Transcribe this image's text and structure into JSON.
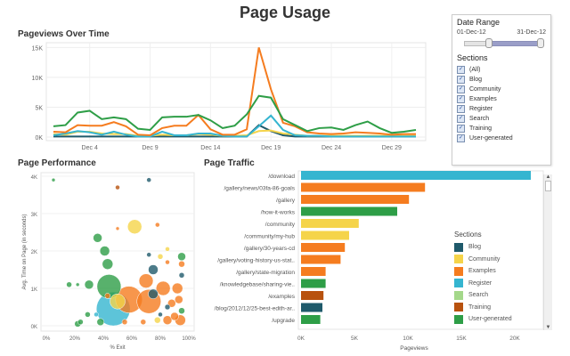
{
  "title": "Page Usage",
  "colors": {
    "Blog": "#1f5a6b",
    "Community": "#f5d44a",
    "Examples": "#f57c1f",
    "Register": "#35b5d0",
    "Search": "#a4d88a",
    "Training": "#b8520f",
    "User-generated": "#2e9e47"
  },
  "filters": {
    "date_range_label": "Date Range",
    "start": "01-Dec-12",
    "end": "31-Dec-12",
    "sections_label": "Sections",
    "sections": [
      "(All)",
      "Blog",
      "Community",
      "Examples",
      "Register",
      "Search",
      "Training",
      "User-generated"
    ]
  },
  "chart_data": [
    {
      "type": "line",
      "title": "Pageviews Over Time",
      "x": [
        "Dec 1",
        "Dec 2",
        "Dec 3",
        "Dec 4",
        "Dec 5",
        "Dec 6",
        "Dec 7",
        "Dec 8",
        "Dec 9",
        "Dec 10",
        "Dec 11",
        "Dec 12",
        "Dec 13",
        "Dec 14",
        "Dec 15",
        "Dec 16",
        "Dec 17",
        "Dec 18",
        "Dec 19",
        "Dec 20",
        "Dec 21",
        "Dec 22",
        "Dec 23",
        "Dec 24",
        "Dec 25",
        "Dec 26",
        "Dec 27",
        "Dec 28",
        "Dec 29",
        "Dec 30",
        "Dec 31"
      ],
      "xticks": [
        "Dec 4",
        "Dec 9",
        "Dec 14",
        "Dec 19",
        "Dec 24",
        "Dec 29"
      ],
      "yticks": [
        "0K",
        "5K",
        "10K",
        "15K"
      ],
      "ylim": [
        0,
        15500
      ],
      "series": [
        {
          "name": "User-generated",
          "values": [
            1800,
            2000,
            4100,
            4400,
            3000,
            3300,
            3000,
            1400,
            1200,
            3300,
            3400,
            3400,
            3700,
            2800,
            1500,
            1900,
            3800,
            6900,
            6600,
            3000,
            2000,
            1000,
            1500,
            1600,
            1200,
            2000,
            2600,
            1500,
            700,
            900,
            1200
          ]
        },
        {
          "name": "Examples",
          "values": [
            900,
            800,
            2000,
            1900,
            1900,
            2500,
            1800,
            400,
            300,
            1500,
            1900,
            1900,
            3700,
            1300,
            400,
            400,
            1300,
            15000,
            8000,
            2400,
            1800,
            800,
            600,
            500,
            600,
            800,
            700,
            600,
            400,
            500,
            500
          ]
        },
        {
          "name": "Register",
          "values": [
            300,
            600,
            1000,
            800,
            400,
            900,
            400,
            100,
            100,
            900,
            300,
            300,
            600,
            600,
            200,
            100,
            100,
            1800,
            3600,
            1200,
            300,
            200,
            200,
            100,
            100,
            100,
            100,
            100,
            100,
            100,
            100
          ]
        },
        {
          "name": "Community",
          "values": [
            500,
            400,
            900,
            900,
            600,
            500,
            500,
            200,
            200,
            400,
            300,
            300,
            500,
            400,
            200,
            200,
            300,
            1000,
            1100,
            600,
            400,
            200,
            200,
            200,
            200,
            200,
            200,
            200,
            200,
            200,
            200
          ]
        },
        {
          "name": "Blog",
          "values": [
            100,
            100,
            100,
            100,
            100,
            100,
            100,
            100,
            100,
            100,
            100,
            100,
            100,
            100,
            100,
            100,
            100,
            2000,
            1000,
            300,
            100,
            100,
            100,
            100,
            100,
            100,
            100,
            100,
            100,
            100,
            100
          ]
        }
      ]
    },
    {
      "type": "scatter",
      "title": "Page Performance",
      "xlabel": "% Exit",
      "ylabel": "Avg. Time on Page (in seconds)",
      "xticks": [
        "0%",
        "20%",
        "40%",
        "60%",
        "80%",
        "100%"
      ],
      "yticks": [
        "0K",
        "1K",
        "2K",
        "3K",
        "4K"
      ],
      "xlim": [
        0,
        100
      ],
      "ylim": [
        0,
        4000
      ],
      "points": [
        [
          5,
          3900,
          2,
          "User-generated"
        ],
        [
          72,
          3900,
          3,
          "Blog"
        ],
        [
          50,
          3700,
          3,
          "Training"
        ],
        [
          62,
          2650,
          14,
          "Community"
        ],
        [
          50,
          2600,
          2,
          "Examples"
        ],
        [
          78,
          2700,
          3,
          "Examples"
        ],
        [
          36,
          2350,
          8,
          "User-generated"
        ],
        [
          41,
          2000,
          9,
          "User-generated"
        ],
        [
          43,
          1650,
          10,
          "User-generated"
        ],
        [
          72,
          1900,
          3,
          "Blog"
        ],
        [
          80,
          1850,
          4,
          "Community"
        ],
        [
          85,
          2050,
          3,
          "Community"
        ],
        [
          95,
          1850,
          7,
          "User-generated"
        ],
        [
          95,
          1650,
          5,
          "Examples"
        ],
        [
          85,
          1700,
          3,
          "Examples"
        ],
        [
          75,
          1500,
          9,
          "Blog"
        ],
        [
          95,
          1350,
          4,
          "Blog"
        ],
        [
          70,
          1200,
          14,
          "Examples"
        ],
        [
          82,
          1000,
          14,
          "Examples"
        ],
        [
          92,
          1000,
          10,
          "Examples"
        ],
        [
          44,
          1050,
          25,
          "User-generated"
        ],
        [
          30,
          1100,
          8,
          "User-generated"
        ],
        [
          16,
          1100,
          4,
          "User-generated"
        ],
        [
          22,
          1100,
          2,
          "User-generated"
        ],
        [
          75,
          850,
          9,
          "Blog"
        ],
        [
          58,
          700,
          28,
          "Examples"
        ],
        [
          72,
          650,
          25,
          "Examples"
        ],
        [
          47,
          450,
          36,
          "Register"
        ],
        [
          50,
          650,
          15,
          "Community"
        ],
        [
          93,
          700,
          7,
          "Examples"
        ],
        [
          88,
          600,
          7,
          "Examples"
        ],
        [
          85,
          500,
          4,
          "Blog"
        ],
        [
          95,
          400,
          5,
          "User-generated"
        ],
        [
          90,
          250,
          7,
          "Examples"
        ],
        [
          94,
          150,
          10,
          "Examples"
        ],
        [
          85,
          150,
          8,
          "Examples"
        ],
        [
          78,
          150,
          5,
          "Community"
        ],
        [
          22,
          50,
          5,
          "User-generated"
        ],
        [
          24,
          100,
          4,
          "User-generated"
        ],
        [
          29,
          300,
          4,
          "User-generated"
        ],
        [
          38,
          100,
          6,
          "User-generated"
        ],
        [
          55,
          100,
          4,
          "Examples"
        ],
        [
          68,
          100,
          4,
          "Examples"
        ],
        [
          80,
          300,
          3,
          "Blog"
        ],
        [
          35,
          300,
          3,
          "Register"
        ],
        [
          43,
          800,
          4,
          "Examples"
        ]
      ]
    },
    {
      "type": "bar",
      "title": "Page Traffic",
      "xlabel": "Pageviews",
      "xticks": [
        "0K",
        "5K",
        "10K",
        "15K",
        "20K"
      ],
      "xlim": [
        0,
        22500
      ],
      "categories": [
        "/download",
        "/gallery/news/03fa-86-goals",
        "/gallery",
        "/how-it-works",
        "/community",
        "/community/my-hub",
        "/gallery/30-years-cd",
        "/gallery/voting-history-us-stat..",
        "/gallery/state-migration",
        "/knowledgebase/sharing-vie..",
        "/examples",
        "/blog/2012/12/25-best-edith-ar..",
        "/upgrade"
      ],
      "values": [
        21500,
        11600,
        10100,
        9000,
        5400,
        4500,
        4100,
        3700,
        2300,
        2300,
        2100,
        2000,
        1800
      ],
      "sections": [
        "Register",
        "Examples",
        "Examples",
        "User-generated",
        "Community",
        "Community",
        "Examples",
        "Examples",
        "Examples",
        "User-generated",
        "Training",
        "Blog",
        "User-generated"
      ],
      "legend_title": "Sections",
      "legend": [
        "Blog",
        "Community",
        "Examples",
        "Register",
        "Search",
        "Training",
        "User-generated"
      ]
    }
  ]
}
